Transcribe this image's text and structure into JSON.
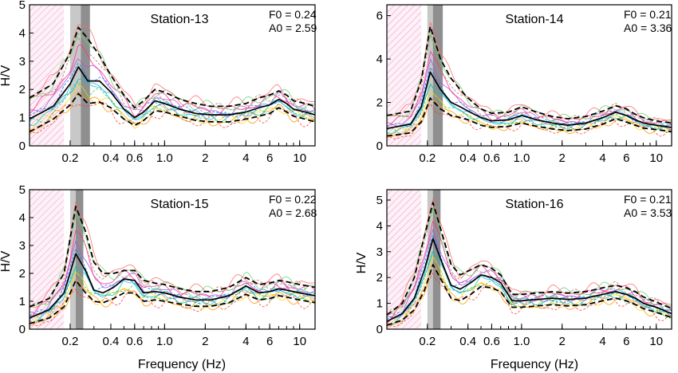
{
  "chart_data": [
    {
      "type": "line",
      "title": "Station-13",
      "f0_text": "F0 = 0.24",
      "a0_text": "A0 = 2.59",
      "xlabel": "",
      "ylabel": "H/V",
      "x_scale": "log",
      "xlim": [
        0.1,
        13
      ],
      "ylim": [
        0,
        5
      ],
      "yticks": [
        0,
        1,
        2,
        3,
        4,
        5
      ],
      "xticks": [
        {
          "v": 0.2,
          "label": "0.2"
        },
        {
          "v": 0.4,
          "label": "0.4"
        },
        {
          "v": 0.6,
          "label": "0.6"
        },
        {
          "v": 1.0,
          "label": "1.0"
        },
        {
          "v": 2,
          "label": "2"
        },
        {
          "v": 4,
          "label": "4"
        },
        {
          "v": 6,
          "label": "6"
        },
        {
          "v": 10,
          "label": "10"
        }
      ],
      "gray_band": [
        0.2,
        0.28
      ],
      "dark_band": [
        0.24,
        0.28
      ],
      "x": [
        0.1,
        0.15,
        0.2,
        0.23,
        0.27,
        0.33,
        0.4,
        0.5,
        0.6,
        0.7,
        0.85,
        1.0,
        1.3,
        1.7,
        2.2,
        3.0,
        4.0,
        5.0,
        6.0,
        7.0,
        8.0,
        9.0,
        11.0,
        13.0
      ],
      "series": [
        {
          "role": "mean",
          "values": [
            0.95,
            1.4,
            2.2,
            2.8,
            2.3,
            2.3,
            1.9,
            1.3,
            1.0,
            1.2,
            1.6,
            1.5,
            1.3,
            1.15,
            1.1,
            1.1,
            1.2,
            1.35,
            1.45,
            1.65,
            1.5,
            1.3,
            1.2,
            1.1
          ]
        },
        {
          "role": "upper",
          "values": [
            1.7,
            2.2,
            3.3,
            4.2,
            3.8,
            3.2,
            2.5,
            1.8,
            1.35,
            1.6,
            2.0,
            1.9,
            1.65,
            1.5,
            1.4,
            1.4,
            1.5,
            1.7,
            1.8,
            1.95,
            1.8,
            1.6,
            1.5,
            1.4
          ]
        },
        {
          "role": "lower",
          "values": [
            0.5,
            0.95,
            1.45,
            1.85,
            1.5,
            1.55,
            1.35,
            0.95,
            0.72,
            0.9,
            1.25,
            1.2,
            1.05,
            0.9,
            0.85,
            0.85,
            0.95,
            1.05,
            1.15,
            1.35,
            1.2,
            1.05,
            0.95,
            0.85
          ]
        }
      ]
    },
    {
      "type": "line",
      "title": "Station-14",
      "f0_text": "F0 = 0.21",
      "a0_text": "A0 = 3.36",
      "xlabel": "",
      "ylabel": "",
      "x_scale": "log",
      "xlim": [
        0.1,
        13
      ],
      "ylim": [
        0,
        6.5
      ],
      "yticks": [
        0,
        2,
        4,
        6
      ],
      "xticks": [
        {
          "v": 0.2,
          "label": "0.2"
        },
        {
          "v": 0.4,
          "label": "0.4"
        },
        {
          "v": 0.6,
          "label": "0.6"
        },
        {
          "v": 1.0,
          "label": "1.0"
        },
        {
          "v": 2,
          "label": "2"
        },
        {
          "v": 4,
          "label": "4"
        },
        {
          "v": 6,
          "label": "6"
        },
        {
          "v": 10,
          "label": "10"
        }
      ],
      "gray_band": [
        0.2,
        0.26
      ],
      "dark_band": [
        0.22,
        0.26
      ],
      "x": [
        0.1,
        0.15,
        0.18,
        0.21,
        0.25,
        0.3,
        0.35,
        0.4,
        0.5,
        0.6,
        0.8,
        1.0,
        1.3,
        1.7,
        2.2,
        3.0,
        4.0,
        5.0,
        6.0,
        7.0,
        8.0,
        10.0,
        13.0
      ],
      "series": [
        {
          "role": "mean",
          "values": [
            0.8,
            1.0,
            1.8,
            3.4,
            2.6,
            2.0,
            1.8,
            1.6,
            1.3,
            1.15,
            1.2,
            1.4,
            1.2,
            1.05,
            0.95,
            1.05,
            1.3,
            1.55,
            1.4,
            1.2,
            1.05,
            0.95,
            0.85
          ]
        },
        {
          "role": "upper",
          "values": [
            1.4,
            1.6,
            3.0,
            5.5,
            4.0,
            3.1,
            2.6,
            2.2,
            1.7,
            1.5,
            1.55,
            1.8,
            1.55,
            1.35,
            1.25,
            1.35,
            1.6,
            1.85,
            1.7,
            1.45,
            1.3,
            1.15,
            1.05
          ]
        },
        {
          "role": "lower",
          "values": [
            0.45,
            0.6,
            1.1,
            2.2,
            1.7,
            1.4,
            1.3,
            1.2,
            0.95,
            0.85,
            0.9,
            1.05,
            0.9,
            0.78,
            0.7,
            0.78,
            1.0,
            1.25,
            1.1,
            0.95,
            0.82,
            0.75,
            0.65
          ]
        }
      ]
    },
    {
      "type": "line",
      "title": "Station-15",
      "f0_text": "F0 = 0.22",
      "a0_text": "A0 = 2.68",
      "xlabel": "Frequency (Hz)",
      "ylabel": "H/V",
      "x_scale": "log",
      "xlim": [
        0.1,
        13
      ],
      "ylim": [
        0,
        5
      ],
      "yticks": [
        0,
        1,
        2,
        3,
        4,
        5
      ],
      "xticks": [
        {
          "v": 0.2,
          "label": "0.2"
        },
        {
          "v": 0.4,
          "label": "0.4"
        },
        {
          "v": 0.6,
          "label": "0.6"
        },
        {
          "v": 1.0,
          "label": "1.0"
        },
        {
          "v": 2,
          "label": "2"
        },
        {
          "v": 4,
          "label": "4"
        },
        {
          "v": 6,
          "label": "6"
        },
        {
          "v": 10,
          "label": "10"
        }
      ],
      "gray_band": [
        0.2,
        0.25
      ],
      "dark_band": [
        0.22,
        0.25
      ],
      "x": [
        0.1,
        0.14,
        0.18,
        0.22,
        0.26,
        0.3,
        0.35,
        0.42,
        0.5,
        0.6,
        0.7,
        0.85,
        1.0,
        1.3,
        1.7,
        2.2,
        3.0,
        4.0,
        5.0,
        6.0,
        7.0,
        8.0,
        10.0,
        13.0
      ],
      "series": [
        {
          "role": "mean",
          "values": [
            0.4,
            0.7,
            1.3,
            2.7,
            2.1,
            1.4,
            1.3,
            1.5,
            1.8,
            1.75,
            1.3,
            1.35,
            1.3,
            1.15,
            1.05,
            1.05,
            1.2,
            1.55,
            1.3,
            1.35,
            1.45,
            1.4,
            1.3,
            1.2
          ]
        },
        {
          "role": "upper",
          "values": [
            0.8,
            1.1,
            2.0,
            4.4,
            3.5,
            2.4,
            2.0,
            2.0,
            2.1,
            2.1,
            1.75,
            1.65,
            1.6,
            1.45,
            1.35,
            1.35,
            1.5,
            1.85,
            1.6,
            1.65,
            1.75,
            1.7,
            1.6,
            1.5
          ]
        },
        {
          "role": "lower",
          "values": [
            0.2,
            0.4,
            0.8,
            1.75,
            1.3,
            1.0,
            0.95,
            1.1,
            1.3,
            1.3,
            1.0,
            1.05,
            1.0,
            0.9,
            0.82,
            0.82,
            0.95,
            1.25,
            1.05,
            1.1,
            1.2,
            1.15,
            1.05,
            0.95
          ]
        }
      ]
    },
    {
      "type": "line",
      "title": "Station-16",
      "f0_text": "F0 = 0.21",
      "a0_text": "A0 = 3.53",
      "xlabel": "Frequency (Hz)",
      "ylabel": "H/V",
      "x_scale": "log",
      "xlim": [
        0.1,
        13
      ],
      "ylim": [
        0,
        5.4
      ],
      "yticks": [
        0,
        1,
        2,
        3,
        4,
        5
      ],
      "xticks": [
        {
          "v": 0.2,
          "label": "0.2"
        },
        {
          "v": 0.4,
          "label": "0.4"
        },
        {
          "v": 0.6,
          "label": "0.6"
        },
        {
          "v": 1.0,
          "label": "1.0"
        },
        {
          "v": 2,
          "label": "2"
        },
        {
          "v": 4,
          "label": "4"
        },
        {
          "v": 6,
          "label": "6"
        },
        {
          "v": 10,
          "label": "10"
        }
      ],
      "gray_band": [
        0.2,
        0.25
      ],
      "dark_band": [
        0.22,
        0.25
      ],
      "x": [
        0.1,
        0.13,
        0.16,
        0.19,
        0.22,
        0.26,
        0.3,
        0.35,
        0.42,
        0.5,
        0.6,
        0.7,
        0.85,
        1.0,
        1.3,
        1.7,
        2.2,
        3.0,
        4.0,
        5.0,
        6.0,
        7.0,
        8.0,
        10.0,
        13.0
      ],
      "series": [
        {
          "role": "mean",
          "values": [
            0.3,
            0.6,
            1.2,
            2.3,
            3.5,
            2.5,
            1.7,
            1.55,
            1.8,
            2.1,
            2.0,
            1.8,
            1.1,
            1.1,
            1.15,
            1.2,
            1.15,
            1.2,
            1.35,
            1.45,
            1.35,
            1.2,
            1.0,
            0.85,
            0.6
          ]
        },
        {
          "role": "upper",
          "values": [
            0.55,
            1.0,
            2.0,
            3.6,
            4.9,
            3.6,
            2.5,
            2.1,
            2.3,
            2.5,
            2.35,
            2.1,
            1.35,
            1.35,
            1.4,
            1.45,
            1.4,
            1.45,
            1.6,
            1.7,
            1.6,
            1.45,
            1.25,
            1.05,
            0.8
          ]
        },
        {
          "role": "lower",
          "values": [
            0.15,
            0.35,
            0.75,
            1.5,
            2.5,
            1.8,
            1.2,
            1.1,
            1.35,
            1.65,
            1.6,
            1.45,
            0.85,
            0.85,
            0.9,
            0.95,
            0.9,
            0.95,
            1.1,
            1.2,
            1.1,
            0.95,
            0.8,
            0.65,
            0.45
          ]
        }
      ]
    }
  ]
}
